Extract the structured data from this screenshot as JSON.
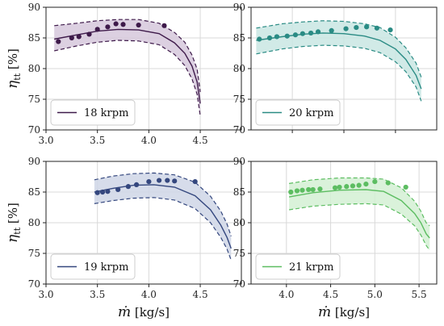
{
  "chart_data": [
    {
      "type": "line",
      "legend": "18 krpm",
      "color": "#3e1a4a",
      "fill": "#d6c8dc",
      "xlim": [
        3.0,
        4.9
      ],
      "ylim": [
        70,
        90
      ],
      "xticks": [
        3.0,
        3.5,
        4.0,
        4.5
      ],
      "yticks": [
        70,
        75,
        80,
        85,
        90
      ],
      "xlabel": "",
      "ylabel": "η_tt [%]",
      "model_x": [
        3.08,
        3.3,
        3.5,
        3.7,
        3.9,
        4.1,
        4.25,
        4.35,
        4.42,
        4.47,
        4.5
      ],
      "model_y": [
        84.8,
        85.5,
        86.1,
        86.4,
        86.3,
        85.7,
        84.2,
        82.5,
        80.4,
        77.8,
        74.3
      ],
      "upper_y": [
        87.0,
        87.4,
        87.8,
        88.0,
        88.0,
        87.4,
        85.9,
        84.3,
        82.2,
        79.9,
        76.2
      ],
      "lower_y": [
        82.9,
        83.7,
        84.3,
        84.6,
        84.5,
        83.9,
        82.3,
        80.5,
        78.3,
        75.8,
        72.3
      ],
      "points_x": [
        3.12,
        3.25,
        3.32,
        3.42,
        3.5,
        3.6,
        3.68,
        3.75,
        3.9,
        4.15
      ],
      "points_y": [
        84.4,
        85.0,
        85.2,
        85.6,
        86.4,
        86.8,
        87.3,
        87.2,
        87.1,
        87.0
      ]
    },
    {
      "type": "line",
      "legend": "20 krpm",
      "color": "#2a8b84",
      "fill": "#c9e6e3",
      "xlim": [
        3.6,
        5.4
      ],
      "ylim": [
        70,
        90
      ],
      "xticks": [],
      "yticks": [
        70,
        75,
        80,
        85,
        90
      ],
      "xlabel": "",
      "ylabel": "",
      "model_x": [
        3.65,
        3.9,
        4.1,
        4.3,
        4.5,
        4.7,
        4.85,
        5.0,
        5.1,
        5.2,
        5.25
      ],
      "model_y": [
        84.6,
        85.2,
        85.6,
        85.8,
        85.7,
        85.3,
        84.6,
        83.2,
        81.5,
        78.9,
        76.7
      ],
      "upper_y": [
        86.6,
        87.3,
        87.6,
        87.8,
        87.7,
        87.3,
        86.7,
        85.1,
        83.4,
        80.9,
        78.6
      ],
      "lower_y": [
        82.4,
        83.2,
        83.6,
        83.8,
        83.7,
        83.3,
        82.6,
        81.1,
        79.5,
        77.0,
        74.7
      ],
      "points_x": [
        3.68,
        3.78,
        3.85,
        3.95,
        4.03,
        4.1,
        4.18,
        4.25,
        4.38,
        4.52,
        4.62,
        4.72,
        4.82,
        4.95
      ],
      "points_y": [
        84.8,
        85.0,
        85.2,
        85.3,
        85.5,
        85.7,
        85.8,
        86.0,
        86.2,
        86.5,
        86.7,
        86.8,
        86.6,
        86.3
      ]
    },
    {
      "type": "line",
      "legend": "19 krpm",
      "color": "#34477e",
      "fill": "#cfd6e6",
      "xlim": [
        3.0,
        4.9
      ],
      "ylim": [
        70,
        90
      ],
      "xticks": [
        3.0,
        3.5,
        4.0,
        4.5
      ],
      "yticks": [
        70,
        75,
        80,
        85,
        90
      ],
      "xlabel": "ṁ [kg/s]",
      "ylabel": "η_tt [%]",
      "model_x": [
        3.47,
        3.65,
        3.85,
        4.05,
        4.25,
        4.45,
        4.6,
        4.7,
        4.76,
        4.8
      ],
      "model_y": [
        85.0,
        85.6,
        86.1,
        86.2,
        85.8,
        84.4,
        82.1,
        79.6,
        77.6,
        75.8
      ],
      "upper_y": [
        87.0,
        87.6,
        88.0,
        88.1,
        87.8,
        86.6,
        84.3,
        81.9,
        79.8,
        77.8
      ],
      "lower_y": [
        83.1,
        83.6,
        84.0,
        84.1,
        83.7,
        82.3,
        80.0,
        77.6,
        75.7,
        73.9
      ],
      "points_x": [
        3.5,
        3.55,
        3.6,
        3.7,
        3.8,
        3.88,
        4.0,
        4.1,
        4.18,
        4.25,
        4.45
      ],
      "points_y": [
        84.9,
        85.0,
        85.1,
        85.4,
        85.9,
        86.2,
        86.7,
        86.9,
        86.9,
        86.8,
        86.7
      ]
    },
    {
      "type": "line",
      "legend": "21 krpm",
      "color": "#5cbd61",
      "fill": "#d3f0d3",
      "xlim": [
        3.6,
        5.7
      ],
      "ylim": [
        70,
        90
      ],
      "xticks": [
        4.0,
        4.5,
        5.0,
        5.5
      ],
      "yticks": [
        70,
        75,
        80,
        85,
        90
      ],
      "xlabel": "ṁ [kg/s]",
      "ylabel": "",
      "model_x": [
        4.03,
        4.3,
        4.6,
        4.9,
        5.1,
        5.3,
        5.45,
        5.52,
        5.58,
        5.62
      ],
      "model_y": [
        84.2,
        84.9,
        85.3,
        85.4,
        85.1,
        83.6,
        81.5,
        80.0,
        78.2,
        77.5
      ],
      "upper_y": [
        86.4,
        87.0,
        87.3,
        87.3,
        87.1,
        85.7,
        83.5,
        81.9,
        80.0,
        79.5
      ],
      "lower_y": [
        82.1,
        82.7,
        83.0,
        83.1,
        82.9,
        81.4,
        79.5,
        78.0,
        76.3,
        75.5
      ],
      "points_x": [
        4.05,
        4.12,
        4.18,
        4.25,
        4.3,
        4.38,
        4.55,
        4.6,
        4.68,
        4.75,
        4.82,
        4.9,
        5.0,
        5.15,
        5.35
      ],
      "points_y": [
        85.0,
        85.2,
        85.3,
        85.4,
        85.4,
        85.5,
        85.7,
        85.8,
        85.9,
        86.0,
        86.1,
        86.3,
        86.7,
        86.5,
        85.8
      ]
    }
  ]
}
